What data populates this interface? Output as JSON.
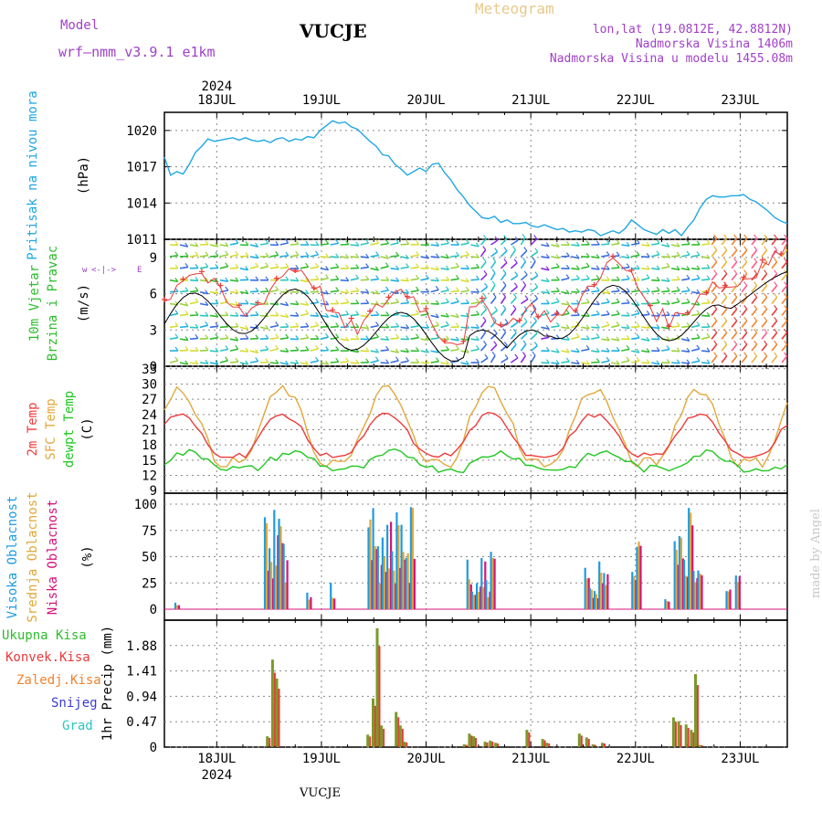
{
  "header": {
    "model_label": "Model",
    "model_name": "wrf—nmm_v3.9.1  e1km",
    "station": "VUCJE",
    "meteogram": "Meteogram",
    "lonlat": "lon,lat (19.0812E, 42.8812N)",
    "altitude": "Nadmorska Visina 1406m",
    "model_altitude": "Nadmorska Visina u modelu 1455.08m"
  },
  "footer_station": "VUCJE",
  "credit": "made by Angel",
  "colors": {
    "pressure": "#1fa7e6",
    "temp2m": "#ef3b3b",
    "sfc": "#e2a83d",
    "dewpt": "#22c722",
    "high": "#1f9be0",
    "mid": "#e0a838",
    "low": "#d4147a",
    "total": "#2ebd2e",
    "conv": "#e83a3a",
    "frozen": "#f2822e",
    "snow": "#3b3bd6",
    "hail": "#2bc6c0",
    "speed": "#000000",
    "gust": "#e83a3a",
    "wind_side": "#a040c8"
  },
  "chart_data": [
    {
      "type": "line",
      "panel": "pressure",
      "side_label": "Pritisak na nivou mora",
      "unit_label": "(hPa)",
      "x_top_year": "2024",
      "x_tick_labels": [
        "18JUL",
        "19JUL",
        "20JUL",
        "21JUL",
        "22JUL",
        "23JUL"
      ],
      "y_ticks": [
        1011,
        1014,
        1017,
        1020
      ],
      "ylim": [
        1011,
        1021.5
      ],
      "series": [
        {
          "x": [
            0,
            0.1,
            0.2,
            0.3,
            0.4,
            0.5,
            0.6,
            0.7,
            0.8,
            0.9,
            1.0,
            1.1,
            1.2,
            1.3,
            1.4,
            1.5,
            1.6,
            1.7,
            1.8,
            1.9,
            2.0,
            2.1,
            2.2,
            2.3,
            2.4,
            2.5,
            2.6,
            2.7,
            2.8,
            2.9,
            3.0,
            3.1,
            3.2,
            3.3,
            3.4,
            3.5,
            3.6,
            3.7,
            3.8,
            3.9,
            4.0,
            4.1,
            4.2,
            4.3,
            4.4,
            4.5,
            4.6,
            4.7,
            4.8,
            4.9,
            5.0,
            5.1,
            5.2,
            5.3,
            5.4,
            5.5,
            5.6,
            5.7,
            5.8,
            5.9,
            6.0,
            6.1,
            6.2,
            6.3,
            6.4,
            6.5,
            6.6,
            6.7,
            6.8,
            6.9,
            7.0,
            7.1,
            7.2,
            7.3,
            7.4,
            7.5,
            7.6,
            7.7,
            7.8,
            7.9,
            8.0,
            8.1,
            8.2,
            8.3,
            8.4,
            8.5,
            8.6,
            8.7,
            8.8,
            8.9,
            9.0,
            9.1,
            9.2,
            9.3,
            9.4,
            9.5,
            9.6,
            9.7,
            9.8,
            9.9,
            10.0,
            10.1,
            10.2,
            10.3,
            10.4,
            10.5,
            10.6,
            10.7,
            10.8,
            10.9,
            11.0,
            11.1,
            11.2,
            11.3,
            11.4,
            11.5,
            11.6,
            11.7,
            11.8,
            11.9,
            12.0,
            12.1,
            12.2,
            12.3,
            12.4,
            12.5,
            12.6,
            12.7,
            12.8,
            12.9,
            13.0,
            13.1,
            13.2,
            13.3,
            13.4,
            13.5,
            13.6,
            13.7,
            13.8,
            13.9,
            14.0,
            14.1,
            14.2,
            14.3,
            14.4,
            14.5,
            14.6,
            14.7,
            14.8,
            14.9,
            15.0,
            15.1,
            15.2,
            15.3,
            15.4,
            15.5,
            15.6,
            15.7,
            15.8,
            15.9,
            16.0,
            16.1,
            16.2,
            16.3,
            16.4,
            16.5,
            16.6,
            16.7,
            16.8,
            16.9,
            17.0,
            17.1,
            17.2,
            17.3,
            17.4,
            17.5,
            17.6,
            17.7,
            17.8,
            17.9,
            18.0,
            18.1,
            18.2,
            18.3,
            18.4,
            18.5,
            18.6,
            18.7,
            18.8,
            18.9,
            19.0,
            19.1,
            19.2,
            19.3,
            19.4,
            19.5,
            19.6,
            19.7,
            19.8,
            19.9,
            20.0,
            20.1,
            20.2,
            20.3,
            20.4,
            20.5,
            20.6,
            20.7,
            20.8,
            20.9,
            21.0,
            21.1,
            21.2,
            21.3,
            21.4,
            21.5,
            21.6,
            21.7,
            21.8,
            21.9,
            22.0,
            22.1,
            22.2,
            22.3,
            22.4,
            22.5,
            22.6,
            22.7,
            22.8,
            22.9,
            23.0,
            23.1,
            23.2,
            23.3,
            23.4,
            23.5,
            23.6,
            23.7,
            23.8,
            23.9,
            24.0,
            24.1,
            24.2,
            24.3,
            24.4,
            24.5,
            24.6,
            24.7,
            24.8,
            24.9,
            25.0,
            25.1,
            25.2,
            25.3,
            25.4,
            25.5,
            25.6,
            25.7,
            25.8,
            25.9,
            26.0,
            26.1,
            26.2,
            26.3,
            26.4,
            26.5,
            26.6,
            26.7,
            26.8,
            26.9,
            27.0,
            27.1,
            27.2,
            27.3,
            27.4,
            27.5,
            27.6,
            27.7,
            27.8,
            27.9,
            28.0,
            28.1,
            28.2,
            28.3,
            28.4,
            28.5,
            28.6,
            28.7,
            28.8,
            28.9,
            29.0,
            29.1,
            29.2,
            29.3,
            29.4,
            29.5,
            29.6,
            29.7,
            29.8,
            29.9,
            30.0,
            30.1,
            30.2,
            30.3,
            30.4,
            30.5,
            30.6,
            30.7,
            30.8,
            30.9,
            31.0,
            31.1,
            31.2,
            31.3,
            31.4,
            31.5,
            31.6,
            31.7,
            31.8,
            31.9,
            32.0,
            32.1,
            32.2,
            32.3,
            32.4,
            32.5,
            32.6,
            32.7,
            32.8,
            32.9,
            33.0,
            33.1,
            33.2,
            33.3,
            33.4,
            33.5,
            33.6,
            33.7,
            33.8,
            33.9,
            34.0,
            34.1,
            34.2,
            34.3,
            34.4,
            34.5,
            34.6,
            34.7,
            34.8,
            34.9,
            35.0,
            35.1,
            35.2,
            35.3,
            35.4,
            35.5,
            35.6,
            35.7,
            35.8,
            35.9,
            36.0,
            36.1,
            36.2,
            36.3,
            36.4,
            36.5,
            36.6,
            36.7,
            36.8,
            36.9,
            37.0,
            37.1,
            37.2,
            37.3,
            37.4,
            37.5,
            37.6,
            37.7,
            37.8,
            37.9,
            38.0,
            38.1,
            38.2,
            38.3,
            38.4,
            38.5,
            38.6,
            38.7,
            38.8,
            38.9,
            39.0,
            39.1,
            39.2,
            39.3,
            39.4,
            39.5,
            39.6,
            39.7,
            39.8,
            39.9,
            40.0,
            40.1,
            40.2,
            40.3,
            40.4,
            40.5,
            40.6,
            40.7,
            40.8,
            40.9,
            41.0,
            41.1,
            41.2,
            41.3,
            41.4,
            41.5,
            41.6,
            41.7,
            41.8,
            41.9,
            42.0,
            42.1,
            42.2,
            42.3,
            42.4,
            42.5,
            42.6,
            42.7,
            42.8,
            42.9,
            43.0,
            43.1,
            43.2,
            43.3,
            43.4,
            43.5,
            43.6,
            43.7,
            43.8,
            43.9,
            44.0,
            44.1,
            44.2,
            44.3,
            44.4,
            44.5,
            44.6,
            44.7,
            44.8,
            44.9,
            45.0,
            45.1,
            45.2,
            45.3,
            45.4,
            45.5,
            45.6,
            45.7,
            45.8,
            45.9,
            46.0,
            46.1,
            46.2,
            46.3,
            46.4,
            46.5,
            46.6,
            46.7,
            46.8,
            46.9,
            47.0,
            47.1,
            47.2,
            47.3,
            47.4,
            47.5,
            47.6,
            47.7,
            47.8,
            47.9,
            48.0,
            48.1,
            48.2,
            48.3,
            48.4,
            48.5,
            48.6,
            48.7,
            48.8,
            48.9,
            49.0,
            49.1,
            49.2,
            49.3,
            49.4,
            49.5,
            49.6,
            49.7,
            49.8,
            49.9,
            50.0,
            50.1,
            50.2,
            50.3,
            50.4,
            50.5,
            50.6,
            50.7,
            50.8,
            50.9,
            51.0,
            51.1,
            51.2,
            51.3,
            51.4,
            51.5,
            51.6,
            51.7,
            51.8,
            51.9,
            52.0,
            52.1,
            52.2,
            52.3,
            52.4,
            52.5,
            52.6,
            52.7,
            52.8,
            52.9,
            53.0,
            53.1,
            53.2,
            53.3,
            53.4,
            53.5,
            53.6,
            53.7,
            53.8,
            53.9,
            54.0,
            54.1,
            54.2,
            54.3,
            54.4,
            54.5,
            54.6,
            54.7,
            54.8,
            54.9,
            55.0,
            55.1,
            55.2,
            55.3,
            55.4,
            55.5,
            55.6,
            55.7,
            55.8,
            55.9,
            56.0,
            56.1,
            56.2,
            56.3,
            56.4,
            56.5,
            56.6,
            56.7,
            56.8,
            56.9,
            57.0,
            57.1,
            57.2,
            57.3,
            57.4,
            57.5,
            57.6,
            57.7,
            57.8,
            57.9,
            58.0,
            58.1,
            58.2,
            58.3,
            58.4,
            58.5,
            58.6,
            58.7,
            58.8,
            58.9,
            59.0,
            59.1,
            59.2,
            59.3,
            59.4,
            59.5,
            59.6,
            59.7,
            59.8,
            59.9,
            60.0,
            60.1,
            60.2,
            60.3,
            60.4,
            60.5,
            60.6,
            60.7,
            60.8,
            60.9,
            61.0,
            61.1,
            61.2,
            61.3,
            61.4,
            61.5,
            61.6,
            61.7,
            61.8,
            61.9,
            62.0,
            62.1,
            62.2,
            62.3,
            62.4,
            62.5,
            62.6,
            62.7,
            62.8,
            62.9,
            63.0,
            63.1,
            63.2,
            63.3,
            63.4,
            63.5,
            63.6,
            63.7,
            63.8,
            63.9,
            64.0,
            64.1,
            64.2,
            64.3,
            64.4,
            64.5,
            64.6,
            64.7,
            64.8,
            64.9,
            65.0,
            65.1,
            65.2,
            65.3,
            65.4,
            65.5,
            65.6,
            65.7,
            65.8,
            65.9,
            66.0,
            66.1,
            66.2,
            66.3,
            66.4,
            66.5,
            66.6,
            66.7,
            66.8,
            66.9,
            67.0,
            67.1,
            67.2,
            67.3,
            67.4,
            67.5,
            67.6,
            67.7,
            67.8,
            67.9,
            68.0,
            68.1,
            68.2,
            68.3,
            68.4,
            68.5,
            68.6,
            68.7,
            68.8,
            68.9,
            69.0,
            69.1,
            69.2,
            69.3,
            69.4,
            69.5,
            69.6,
            69.7,
            69.8,
            69.9,
            70.0,
            70.1,
            70.2,
            70.3,
            70.4,
            70.5,
            70.6,
            70.7,
            70.8,
            70.9,
            71.0,
            71.1,
            71.2,
            71.3,
            71.4,
            71.5,
            71.6,
            71.7,
            71.8,
            71.9,
            72.0,
            72.1,
            72.2,
            72.3,
            72.4,
            72.5,
            72.6,
            72.7,
            72.8,
            72.9,
            73.0,
            73.1,
            73.2,
            73.3,
            73.4,
            73.5,
            73.6,
            73.7,
            73.8,
            73.9,
            74.0,
            74.1,
            74.2,
            74.3,
            74.4,
            74.5,
            74.6,
            74.7,
            74.8,
            74.9,
            75.0,
            75.1,
            75.2,
            75.3,
            75.4,
            75.5,
            75.6,
            75.7,
            75.8,
            75.9,
            76.0,
            76.1,
            76.2,
            76.3,
            76.4,
            76.5,
            76.6,
            76.7,
            76.8,
            76.9,
            77.0,
            77.1,
            77.2,
            77.3,
            77.4,
            77.5,
            77.6,
            77.7,
            77.8,
            77.9,
            78.0,
            78.1,
            78.2,
            78.3,
            78.4,
            78.5,
            78.6,
            78.7,
            78.8,
            78.9,
            79.0,
            79.1,
            79.2,
            79.3,
            79.4,
            79.5,
            79.6,
            79.7,
            79.8,
            79.9,
            80.0,
            80.1,
            80.2,
            80.3,
            80.4,
            80.5,
            80.6,
            80.7,
            80.8,
            80.9,
            81.0,
            81.1,
            81.2,
            81.3,
            81.4,
            81.5,
            81.6,
            81.7,
            81.8,
            81.9,
            82.0,
            82.1,
            82.2,
            82.3,
            82.4,
            82.5,
            82.6,
            82.7,
            82.8,
            82.9,
            83.0,
            83.1,
            83.2,
            83.3,
            83.4,
            83.5,
            83.6,
            83.7,
            83.8,
            83.9,
            84.0,
            84.1,
            84.2,
            84.3,
            84.4,
            84.5,
            84.6,
            84.7,
            84.8,
            84.9,
            85.0,
            85.1,
            85.2,
            85.3,
            85.4,
            85.5,
            85.6,
            85.7,
            85.8,
            85.9,
            86.0,
            86.1,
            86.2,
            86.3,
            86.4,
            86.5,
            86.6,
            86.7,
            86.8,
            86.9,
            87.0,
            87.1,
            87.2,
            87.3,
            87.4,
            87.5,
            87.6,
            87.7,
            87.8,
            87.9,
            88.0,
            88.1,
            88.2,
            88.3,
            88.4,
            88.5,
            88.6,
            88.7,
            88.8,
            88.9,
            89.0,
            89.1,
            89.2,
            89.3,
            89.4,
            89.5,
            89.6,
            89.7,
            89.8,
            89.9,
            90.0,
            90.1,
            90.2,
            90.3,
            90.4,
            90.5,
            90.6,
            90.7,
            90.8,
            90.9,
            91.0,
            91.1,
            91.2,
            91.3,
            91.4,
            91.5,
            91.6,
            91.7,
            91.8,
            91.9,
            92.0,
            92.1,
            92.2,
            92.3,
            92.4,
            92.5,
            92.6,
            92.7,
            92.8,
            92.9,
            93.0,
            93.1,
            93.2,
            93.3,
            93.4,
            93.5,
            93.6,
            93.7,
            93.8,
            93.9,
            94.0,
            94.1,
            94.2,
            94.3,
            94.4,
            94.5,
            94.6,
            94.7,
            94.8,
            94.9,
            95.0,
            95.1,
            95.2,
            95.3,
            95.4,
            95.5,
            95.6,
            95.7,
            95.8,
            95.9,
            96.0,
            96.1,
            96.2,
            96.3,
            96.4,
            96.5,
            96.6,
            96.7,
            96.8,
            96.9,
            97.0,
            97.1,
            97.2,
            97.3,
            97.4,
            97.5,
            97.6,
            97.7,
            97.8,
            97.9,
            98.0,
            98.1,
            98.2,
            98.3,
            98.4,
            98.5,
            98.6,
            98.7,
            98.8,
            98.9,
            99.0,
            99.1,
            99.2,
            99.3,
            99.4,
            99.5,
            99.6,
            99.7,
            99.8,
            99.9,
            100.0
          ],
          "name": "",
          "values_note": ""
        }
      ]
    }
  ]
}
